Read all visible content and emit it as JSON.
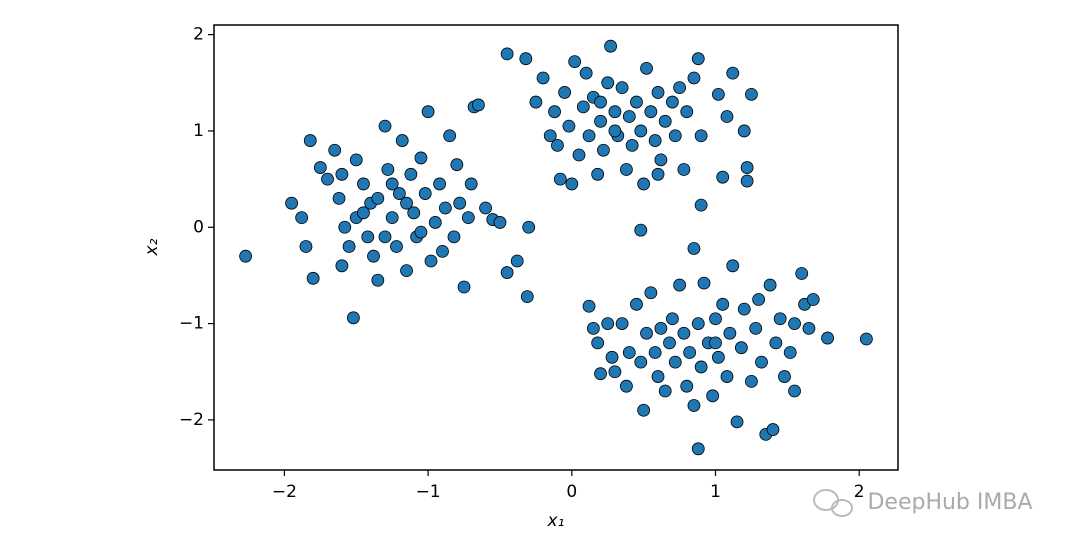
{
  "chart_data": {
    "type": "scatter",
    "xlabel": "x₁",
    "ylabel": "x₂",
    "watermark": "DeepHub IMBA",
    "color": "#1f77b4",
    "edgecolor": "#000000",
    "xlim": [
      -2.49,
      2.27
    ],
    "ylim": [
      -2.52,
      2.1
    ],
    "xticks": [
      {
        "value": -2,
        "label": "−2"
      },
      {
        "value": -1,
        "label": "−1"
      },
      0,
      1,
      2
    ],
    "yticks": [
      {
        "value": -2,
        "label": "−2"
      },
      {
        "value": -1,
        "label": "−1"
      },
      0,
      1,
      2
    ],
    "grid": false,
    "x": [
      -1.95,
      -1.88,
      -1.85,
      -1.8,
      -1.82,
      -1.75,
      -1.7,
      -1.65,
      -1.6,
      -1.62,
      -1.58,
      -1.55,
      -1.6,
      -1.5,
      -1.5,
      -1.45,
      -1.42,
      -1.4,
      -1.38,
      -1.35,
      -1.3,
      -1.28,
      -1.25,
      -1.22,
      -1.2,
      -1.18,
      -1.15,
      -1.12,
      -1.1,
      -1.08,
      -1.05,
      -1.02,
      -1.0,
      -0.98,
      -0.95,
      -0.92,
      -0.9,
      -0.88,
      -0.85,
      -0.82,
      -0.8,
      -0.78,
      -0.75,
      -0.72,
      -0.7,
      -0.68,
      -0.65,
      -0.6,
      -0.55,
      -0.5,
      -0.45,
      -0.38,
      -2.27,
      -1.52,
      -1.45,
      -1.3,
      -1.25,
      -1.15,
      -1.05,
      -1.35,
      -0.45,
      -0.32,
      -0.25,
      -0.2,
      -0.15,
      -0.12,
      -0.1,
      -0.08,
      -0.05,
      -0.02,
      0.0,
      0.02,
      0.05,
      0.08,
      0.1,
      0.12,
      0.15,
      0.18,
      0.2,
      0.22,
      0.25,
      0.27,
      0.3,
      0.32,
      0.35,
      0.38,
      0.4,
      0.42,
      0.45,
      0.48,
      0.5,
      0.52,
      0.55,
      0.58,
      0.6,
      0.62,
      0.65,
      0.7,
      0.72,
      0.75,
      0.78,
      0.8,
      0.85,
      0.88,
      0.9,
      0.9,
      1.02,
      1.05,
      1.08,
      1.12,
      1.2,
      1.22,
      1.22,
      1.25,
      0.48,
      -0.3,
      -0.31,
      0.3,
      0.2,
      0.6,
      0.12,
      0.15,
      0.18,
      0.2,
      0.25,
      0.28,
      0.3,
      0.35,
      0.38,
      0.4,
      0.45,
      0.48,
      0.5,
      0.52,
      0.55,
      0.58,
      0.6,
      0.62,
      0.65,
      0.68,
      0.7,
      0.72,
      0.75,
      0.78,
      0.8,
      0.82,
      0.85,
      0.85,
      0.88,
      0.88,
      0.9,
      0.92,
      0.95,
      0.98,
      1.0,
      1.02,
      1.05,
      1.08,
      1.1,
      1.12,
      1.15,
      1.18,
      1.2,
      1.25,
      1.28,
      1.3,
      1.32,
      1.35,
      1.38,
      1.4,
      1.42,
      1.45,
      1.48,
      1.52,
      1.55,
      1.6,
      1.62,
      1.65,
      1.68,
      1.78,
      2.05,
      1.55,
      1.0
    ],
    "values": [
      0.25,
      0.1,
      -0.2,
      -0.53,
      0.9,
      0.62,
      0.5,
      0.8,
      0.55,
      0.3,
      0.0,
      -0.2,
      -0.4,
      0.7,
      0.1,
      0.45,
      -0.1,
      0.25,
      -0.3,
      -0.55,
      1.05,
      0.6,
      0.1,
      -0.2,
      0.35,
      0.9,
      -0.45,
      0.55,
      0.15,
      -0.1,
      0.72,
      0.35,
      1.2,
      -0.35,
      0.05,
      0.45,
      -0.25,
      0.2,
      0.95,
      -0.1,
      0.65,
      0.25,
      -0.62,
      0.1,
      0.45,
      1.25,
      1.27,
      0.2,
      0.08,
      0.05,
      -0.47,
      -0.35,
      -0.3,
      -0.94,
      0.15,
      -0.1,
      0.45,
      0.25,
      -0.05,
      0.3,
      1.8,
      1.75,
      1.3,
      1.55,
      0.95,
      1.2,
      0.85,
      0.5,
      1.4,
      1.05,
      0.45,
      1.72,
      0.75,
      1.25,
      1.6,
      0.95,
      1.35,
      0.55,
      1.1,
      0.8,
      1.5,
      1.88,
      1.2,
      0.95,
      1.45,
      0.6,
      1.15,
      0.85,
      1.3,
      1.0,
      0.45,
      1.65,
      1.2,
      0.9,
      1.4,
      0.7,
      1.1,
      1.3,
      0.95,
      1.45,
      0.6,
      1.2,
      1.55,
      1.75,
      0.95,
      0.23,
      1.38,
      0.52,
      1.15,
      1.6,
      1.0,
      0.62,
      0.48,
      1.38,
      -0.03,
      0.0,
      -0.72,
      1.0,
      1.3,
      0.55,
      -0.82,
      -1.05,
      -1.2,
      -1.52,
      -1.0,
      -1.35,
      -1.5,
      -1.0,
      -1.65,
      -1.3,
      -0.8,
      -1.4,
      -1.9,
      -1.1,
      -0.68,
      -1.3,
      -1.55,
      -1.05,
      -1.7,
      -1.2,
      -0.95,
      -1.4,
      -0.6,
      -1.1,
      -1.65,
      -1.3,
      -0.22,
      -1.85,
      -2.3,
      -1.0,
      -1.45,
      -0.58,
      -1.2,
      -1.75,
      -0.95,
      -1.35,
      -0.8,
      -1.55,
      -1.1,
      -0.4,
      -2.02,
      -1.25,
      -0.85,
      -1.6,
      -1.05,
      -0.75,
      -1.4,
      -2.15,
      -0.6,
      -2.1,
      -1.2,
      -0.95,
      -1.55,
      -1.3,
      -1.0,
      -0.48,
      -0.8,
      -1.05,
      -0.75,
      -1.15,
      -1.16,
      -1.7,
      -1.2
    ]
  }
}
